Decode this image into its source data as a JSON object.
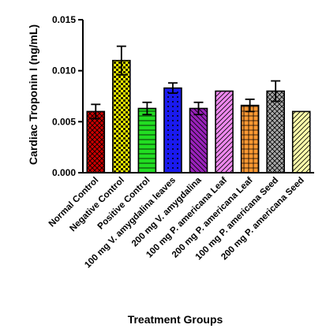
{
  "chart_data": {
    "type": "bar",
    "title": "",
    "xlabel": "Treatment Groups",
    "ylabel": "Cardiac Troponin I (ng/mL)",
    "ylim": [
      0,
      0.015
    ],
    "yticks": [
      "0.000",
      "0.005",
      "0.010",
      "0.015"
    ],
    "categories": [
      "Normal Control",
      "Negative Control",
      "Positive Control",
      "100 mg V. amygdalina leaves",
      "200 mg V. amygdalina",
      "100 mg P. americana Leaf",
      "200 mg P. americana Leaf",
      "100 mg P. americana Seed",
      "200 mg P. americana Seed"
    ],
    "values": [
      0.006,
      0.011,
      0.0063,
      0.0083,
      0.0063,
      0.008,
      0.0066,
      0.008,
      0.006
    ],
    "errors": [
      0.0007,
      0.0014,
      0.0006,
      0.0005,
      0.0006,
      0.0,
      0.0006,
      0.001,
      0.0
    ],
    "colors": [
      "#cc0000",
      "#ffff00",
      "#22dd22",
      "#1a1aee",
      "#9922bb",
      "#ee88ee",
      "#ff9933",
      "#aaaaaa",
      "#ffffaa"
    ],
    "patterns": [
      "crosshatch-fine",
      "checker",
      "horizontal",
      "dots",
      "diagonal-left",
      "diagonal-right",
      "grid",
      "crosshatch",
      "diagonal-right"
    ]
  }
}
